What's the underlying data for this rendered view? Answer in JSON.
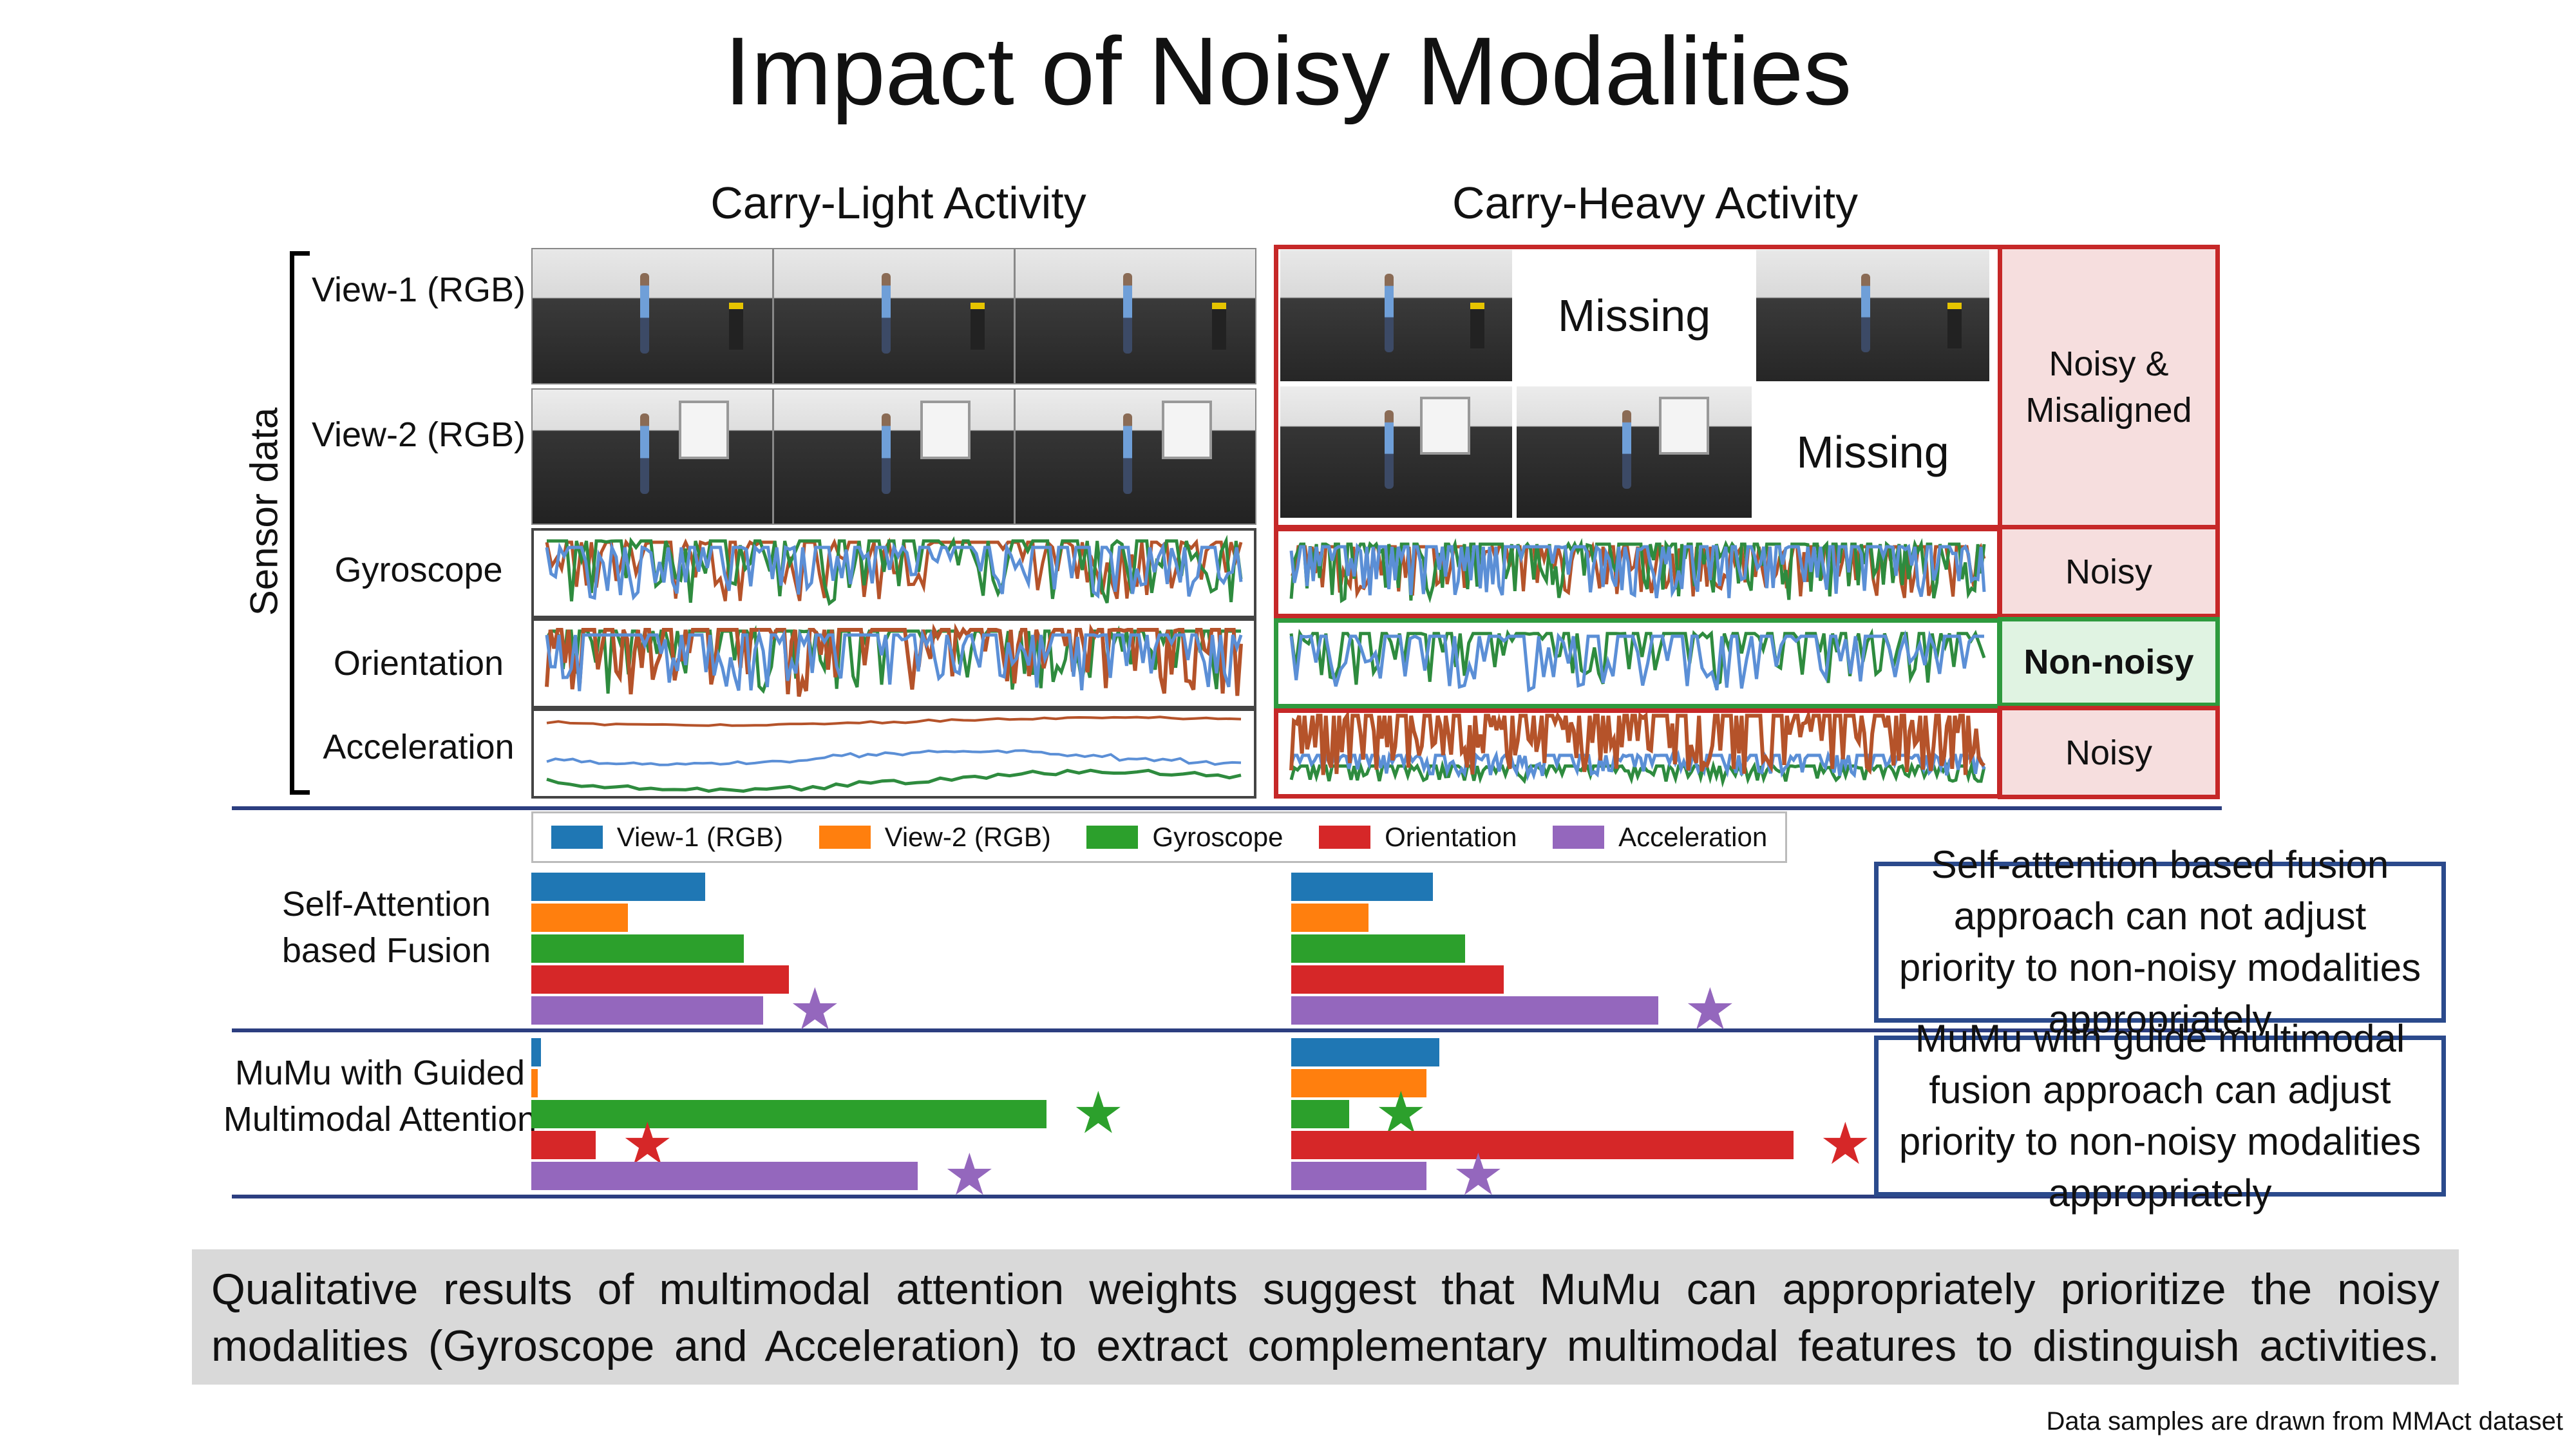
{
  "title": "Impact of Noisy Modalities",
  "columns": {
    "light": "Carry-Light Activity",
    "heavy": "Carry-Heavy Activity"
  },
  "sensor_label": "Sensor data",
  "rows": {
    "view1": "View-1 (RGB)",
    "view2": "View-2 (RGB)",
    "gyro": "Gyroscope",
    "orient": "Orientation",
    "accel": "Acceleration"
  },
  "missing_label": "Missing",
  "status": {
    "views": "Noisy & Misaligned",
    "gyro": "Noisy",
    "orient": "Non-noisy",
    "accel": "Noisy"
  },
  "legend": [
    {
      "label": "View-1 (RGB)",
      "color": "#1f77b4"
    },
    {
      "label": "View-2 (RGB)",
      "color": "#ff7f0e"
    },
    {
      "label": "Gyroscope",
      "color": "#2ca02c"
    },
    {
      "label": "Orientation",
      "color": "#d62728"
    },
    {
      "label": "Acceleration",
      "color": "#9467bd"
    }
  ],
  "methods": {
    "self_attention": "Self-Attention based Fusion",
    "mumu": "MuMu with Guided Multimodal Attention"
  },
  "notes": {
    "self_attention": "Self-attention based fusion approach can not adjust priority to non-noisy modalities appropriately",
    "mumu": "MuMu with guide multimodal fusion approach can adjust priority to non-noisy modalities appropriately"
  },
  "chart_data": [
    {
      "type": "bar",
      "title": "Self-Attention based Fusion - Carry-Light",
      "categories": [
        "View-1 (RGB)",
        "View-2 (RGB)",
        "Gyroscope",
        "Orientation",
        "Acceleration"
      ],
      "values": [
        0.27,
        0.15,
        0.33,
        0.4,
        0.36
      ],
      "starred": [
        "Acceleration"
      ]
    },
    {
      "type": "bar",
      "title": "Self-Attention based Fusion - Carry-Heavy",
      "categories": [
        "View-1 (RGB)",
        "View-2 (RGB)",
        "Gyroscope",
        "Orientation",
        "Acceleration"
      ],
      "values": [
        0.22,
        0.12,
        0.27,
        0.33,
        0.57
      ],
      "starred": [
        "Acceleration"
      ]
    },
    {
      "type": "bar",
      "title": "MuMu with Guided Multimodal Attention - Carry-Light",
      "categories": [
        "View-1 (RGB)",
        "View-2 (RGB)",
        "Gyroscope",
        "Orientation",
        "Acceleration"
      ],
      "values": [
        0.015,
        0.01,
        0.8,
        0.1,
        0.6
      ],
      "starred": [
        "Gyroscope",
        "Orientation",
        "Acceleration"
      ]
    },
    {
      "type": "bar",
      "title": "MuMu with Guided Multimodal Attention - Carry-Heavy",
      "categories": [
        "View-1 (RGB)",
        "View-2 (RGB)",
        "Gyroscope",
        "Orientation",
        "Acceleration"
      ],
      "values": [
        0.23,
        0.21,
        0.09,
        0.78,
        0.21
      ],
      "starred": [
        "Gyroscope",
        "Orientation",
        "Acceleration"
      ]
    }
  ],
  "conclusion": "Qualitative results of multimodal attention weights suggest that MuMu can appropriately prioritize the noisy modalities (Gyroscope and Acceleration) to extract complementary multimodal features to distinguish activities.",
  "footnote": "Data samples are drawn from MMAct dataset"
}
